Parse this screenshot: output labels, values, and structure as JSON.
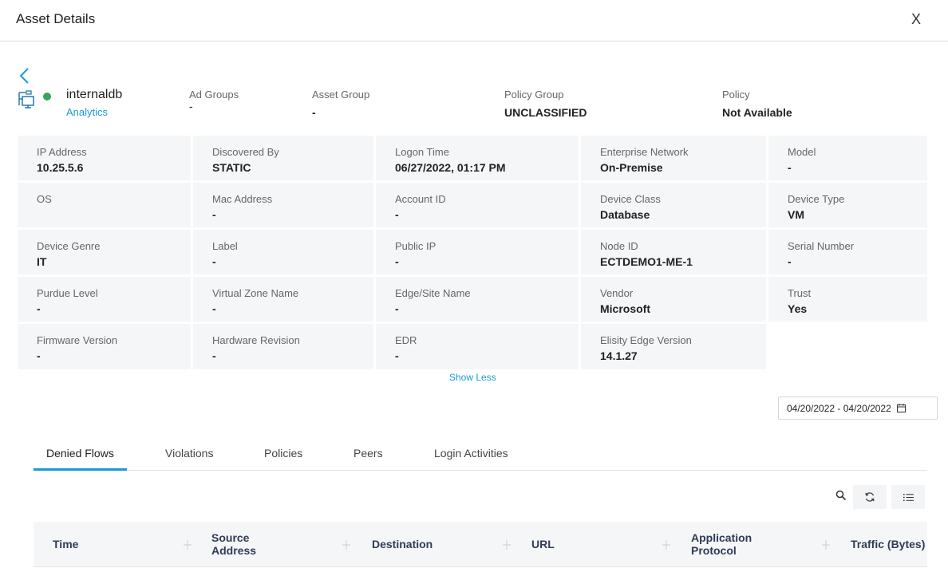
{
  "dialog": {
    "title": "Asset Details",
    "close_label": "X"
  },
  "asset": {
    "name": "internaldb",
    "category": "Analytics",
    "status_color": "#3aa35c",
    "icon": "server-network-icon"
  },
  "header_fields": {
    "ad_groups": {
      "label": "Ad Groups",
      "value": "-"
    },
    "asset_group": {
      "label": "Asset Group",
      "value": "-"
    },
    "policy_group": {
      "label": "Policy Group",
      "value": "UNCLASSIFIED"
    },
    "policy": {
      "label": "Policy",
      "value": "Not Available"
    }
  },
  "details": [
    {
      "label": "IP Address",
      "value": "10.25.5.6"
    },
    {
      "label": "Discovered By",
      "value": "STATIC"
    },
    {
      "label": "Logon Time",
      "value": "06/27/2022, 01:17 PM"
    },
    {
      "label": "Enterprise Network",
      "value": "On-Premise"
    },
    {
      "label": "Model",
      "value": "-"
    },
    {
      "label": "OS",
      "value": ""
    },
    {
      "label": "Mac Address",
      "value": "-"
    },
    {
      "label": "Account ID",
      "value": "-"
    },
    {
      "label": "Device Class",
      "value": "Database"
    },
    {
      "label": "Device Type",
      "value": "VM"
    },
    {
      "label": "Device Genre",
      "value": "IT"
    },
    {
      "label": "Label",
      "value": "-"
    },
    {
      "label": "Public IP",
      "value": "-"
    },
    {
      "label": "Node ID",
      "value": "ECTDEMO1-ME-1"
    },
    {
      "label": "Serial Number",
      "value": "-"
    },
    {
      "label": "Purdue Level",
      "value": "-"
    },
    {
      "label": "Virtual Zone Name",
      "value": "-"
    },
    {
      "label": "Edge/Site Name",
      "value": "-"
    },
    {
      "label": "Vendor",
      "value": "Microsoft"
    },
    {
      "label": "Trust",
      "value": "Yes"
    },
    {
      "label": "Firmware Version",
      "value": "-"
    },
    {
      "label": "Hardware Revision",
      "value": "-"
    },
    {
      "label": "EDR",
      "value": "-"
    },
    {
      "label": "Elisity Edge Version",
      "value": "14.1.27"
    }
  ],
  "show_less_label": "Show Less",
  "date_range": {
    "value": "04/20/2022 - 04/20/2022",
    "icon": "calendar-icon"
  },
  "tabs": [
    {
      "label": "Denied Flows",
      "active": true
    },
    {
      "label": "Violations",
      "active": false
    },
    {
      "label": "Policies",
      "active": false
    },
    {
      "label": "Peers",
      "active": false
    },
    {
      "label": "Login Activities",
      "active": false
    }
  ],
  "toolbar": {
    "search_icon": "search-icon",
    "refresh_icon": "refresh-icon",
    "columns_icon": "column-list-icon"
  },
  "table": {
    "columns": [
      {
        "line1": "Time",
        "line2": ""
      },
      {
        "line1": "Source",
        "line2": "Address"
      },
      {
        "line1": "Destination",
        "line2": ""
      },
      {
        "line1": "URL",
        "line2": ""
      },
      {
        "line1": "Application",
        "line2": "Protocol"
      },
      {
        "line1": "Traffic (Bytes)",
        "line2": ""
      }
    ]
  },
  "colors": {
    "accent": "#1a9bd7",
    "status_ok": "#3aa35c",
    "header_text": "#2f3c56"
  }
}
